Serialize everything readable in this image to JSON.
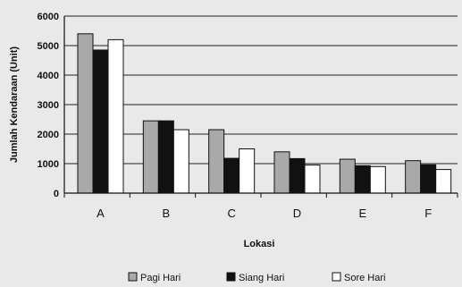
{
  "chart_data": {
    "type": "bar",
    "title": "",
    "xlabel": "Lokasi",
    "ylabel": "Jumlah Kendaraan (Unit)",
    "ylim": [
      0,
      6000
    ],
    "yticks": [
      "0",
      "1000",
      "2000",
      "3000",
      "4000",
      "5000",
      "6000"
    ],
    "grid": true,
    "legend_position": "bottom",
    "categories": [
      "A",
      "B",
      "C",
      "D",
      "E",
      "F"
    ],
    "series": [
      {
        "name": "Pagi Hari",
        "values": [
          5400,
          2450,
          2150,
          1400,
          1150,
          1100
        ],
        "fill": "#a9a9a9"
      },
      {
        "name": "Siang Hari",
        "values": [
          4850,
          2450,
          1180,
          1170,
          930,
          960
        ],
        "fill": "#111111"
      },
      {
        "name": "Sore Hari",
        "values": [
          5200,
          2150,
          1500,
          950,
          900,
          800
        ],
        "fill": "#ffffff"
      }
    ]
  }
}
